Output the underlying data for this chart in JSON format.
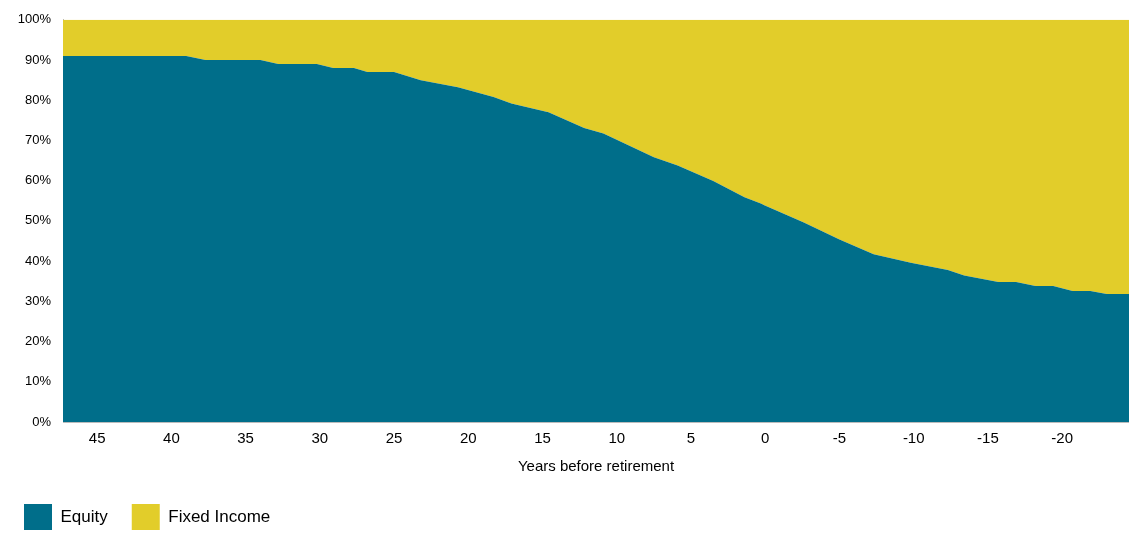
{
  "chart_data": {
    "type": "area",
    "stacked": true,
    "xlabel": "Years before retirement",
    "x": [
      47.3,
      39,
      37.7,
      34,
      32.8,
      30.2,
      29.1,
      27.7,
      26.8,
      25,
      23.2,
      20.7,
      18.3,
      17.1,
      14.6,
      12.2,
      10.9,
      7.5,
      5.9,
      3.5,
      1.4,
      0.3,
      -2.6,
      -5,
      -7.3,
      -9.8,
      -12.3,
      -13.4,
      -15.7,
      -16.9,
      -18.2,
      -19.4,
      -20.7,
      -21.9,
      -23,
      -24.5
    ],
    "series": [
      {
        "name": "Equity",
        "color": "#006e8a",
        "values": [
          91,
          91,
          90,
          90,
          89,
          89,
          88,
          88,
          87,
          87,
          85,
          83.2,
          80.8,
          79.2,
          77,
          73.1,
          71.7,
          65.8,
          63.8,
          59.9,
          55.9,
          54.3,
          49.6,
          45.4,
          41.7,
          39.6,
          37.8,
          36.4,
          34.8,
          34.8,
          33.8,
          33.8,
          32.6,
          32.6,
          31.8,
          31.8
        ]
      },
      {
        "name": "Fixed Income",
        "color": "#e2cd2a",
        "values": [
          9,
          9,
          10,
          10,
          11,
          11,
          12,
          12,
          13,
          13,
          15,
          16.8,
          19.2,
          20.8,
          23,
          26.9,
          28.3,
          34.2,
          36.2,
          40.1,
          44.1,
          45.7,
          50.4,
          54.6,
          58.3,
          60.4,
          62.2,
          63.6,
          65.2,
          65.2,
          66.2,
          66.2,
          67.4,
          67.4,
          68.2,
          68.2
        ]
      }
    ],
    "xlim": [
      47.3,
      -24.5
    ],
    "xticks": [
      45,
      40,
      35,
      30,
      25,
      20,
      15,
      10,
      5,
      0,
      -5,
      -10,
      -15,
      -20
    ],
    "ylim": [
      0,
      100
    ],
    "yticks": [
      {
        "value": 0,
        "label": "0%"
      },
      {
        "value": 10,
        "label": "10%"
      },
      {
        "value": 20,
        "label": "20%"
      },
      {
        "value": 30,
        "label": "30%"
      },
      {
        "value": 40,
        "label": "40%"
      },
      {
        "value": 50,
        "label": "50%"
      },
      {
        "value": 60,
        "label": "60%"
      },
      {
        "value": 70,
        "label": "70%"
      },
      {
        "value": 80,
        "label": "80%"
      },
      {
        "value": 90,
        "label": "90%"
      },
      {
        "value": 100,
        "label": "100%"
      }
    ],
    "grid": false,
    "legend": "bottom left"
  }
}
